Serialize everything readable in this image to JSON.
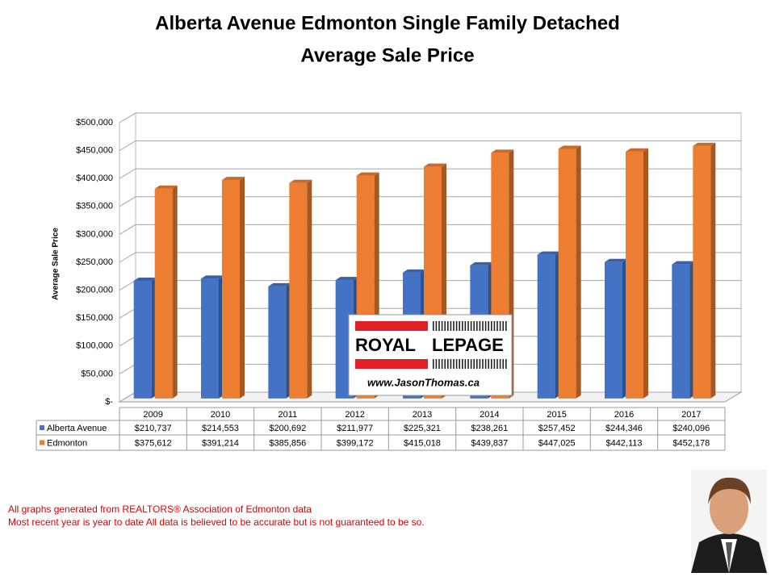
{
  "chart_data": {
    "type": "bar3d",
    "title": [
      "Alberta Avenue Edmonton Single Family Detached",
      "Average Sale Price"
    ],
    "y_label": "Average Sale Price",
    "categories": [
      "2009",
      "2010",
      "2011",
      "2012",
      "2013",
      "2014",
      "2015",
      "2016",
      "2017"
    ],
    "series": [
      {
        "name": "Alberta Avenue",
        "color": "#4472c4",
        "values": [
          210737,
          214553,
          200692,
          211977,
          225321,
          238261,
          257452,
          244346,
          240096
        ],
        "value_labels": [
          "$210,737",
          "$214,553",
          "$200,692",
          "$211,977",
          "$225,321",
          "$238,261",
          "$257,452",
          "$244,346",
          "$240,096"
        ]
      },
      {
        "name": "Edmonton",
        "color": "#ed7d31",
        "values": [
          375612,
          391214,
          385856,
          399172,
          415018,
          439837,
          447025,
          442113,
          452178
        ],
        "value_labels": [
          "$375,612",
          "$391,214",
          "$385,856",
          "$399,172",
          "$415,018",
          "$439,837",
          "$447,025",
          "$442,113",
          "$452,178"
        ]
      }
    ],
    "ylim": [
      0,
      500000
    ],
    "yticks": [
      {
        "value": 0,
        "label": "$-"
      },
      {
        "value": 50000,
        "label": "$50,000"
      },
      {
        "value": 100000,
        "label": "$100,000"
      },
      {
        "value": 150000,
        "label": "$150,000"
      },
      {
        "value": 200000,
        "label": "$200,000"
      },
      {
        "value": 250000,
        "label": "$250,000"
      },
      {
        "value": 300000,
        "label": "$300,000"
      },
      {
        "value": 350000,
        "label": "$350,000"
      },
      {
        "value": 400000,
        "label": "$400,000"
      },
      {
        "value": 450000,
        "label": "$450,000"
      },
      {
        "value": 500000,
        "label": "$500,000"
      }
    ],
    "grid": true
  },
  "logo": {
    "brand_left": "ROYAL",
    "brand_right": "LEPAGE",
    "url": "www.JasonThomas.ca"
  },
  "footer": [
    "All graphs generated from REALTORS® Association of Edmonton data",
    "Most recent year is year to date All data is believed to be accurate but is not guaranteed to be so."
  ]
}
